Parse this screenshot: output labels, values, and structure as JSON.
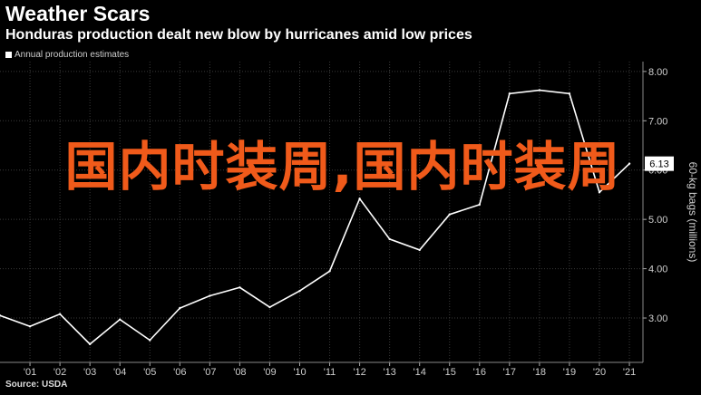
{
  "header": {
    "title": "Weather Scars",
    "subtitle": "Honduras production dealt new blow by hurricanes amid low prices"
  },
  "source": "Source: USDA",
  "overlay_text": "国内时装周,国内时装周",
  "colors": {
    "background": "#000000",
    "line": "#ffffff",
    "grid": "#3a3a3a",
    "watermark": "#f05a1a"
  },
  "chart_data": {
    "type": "line",
    "title": "Weather Scars",
    "subtitle": "Honduras production dealt new blow by hurricanes amid low prices",
    "xlabel": "",
    "ylabel": "60-kg bags (millions)",
    "x": [
      "2000",
      "2001",
      "2002",
      "2003",
      "2004",
      "2005",
      "2006",
      "2007",
      "2008",
      "2009",
      "2010",
      "2011",
      "2012",
      "2013",
      "2014",
      "2015",
      "2016",
      "2017",
      "2018",
      "2019",
      "2020",
      "2021"
    ],
    "x_tick_labels": [
      "'01",
      "'02",
      "'03",
      "'04",
      "'05",
      "'06",
      "'07",
      "'08",
      "'09",
      "'10",
      "'11",
      "'12",
      "'13",
      "'14",
      "'15",
      "'16",
      "'17",
      "'18",
      "'19",
      "'20",
      "'21"
    ],
    "y_tick_labels": [
      "3.00",
      "4.00",
      "5.00",
      "6.00",
      "7.00",
      "8.00"
    ],
    "series": [
      {
        "name": "Annual production estimates",
        "values": [
          3.05,
          2.83,
          3.08,
          2.47,
          2.97,
          2.55,
          3.2,
          3.45,
          3.62,
          3.22,
          3.55,
          3.95,
          5.42,
          4.6,
          4.38,
          5.1,
          5.3,
          7.55,
          7.62,
          7.55,
          5.55,
          6.13
        ]
      }
    ],
    "last_value_label": "6.13",
    "ylim": [
      2.1,
      8.2
    ],
    "y_axis_position": "right",
    "grid": true,
    "legend_position": "top-left"
  }
}
